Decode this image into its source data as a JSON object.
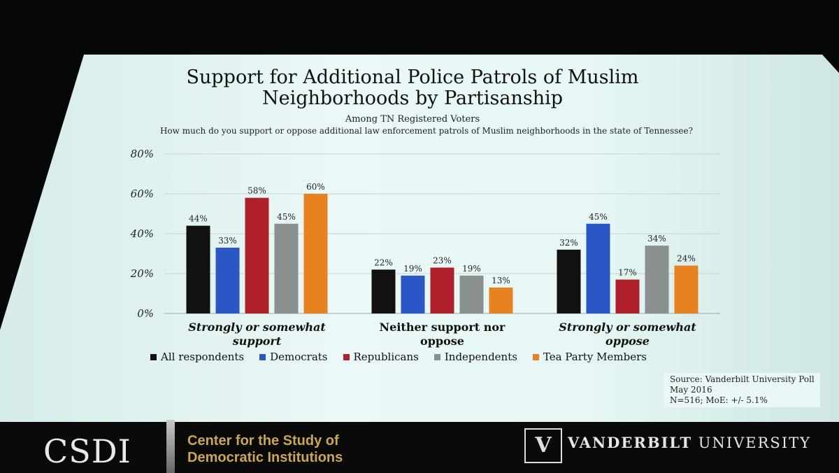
{
  "chart_data": {
    "type": "bar",
    "title": "Support for Additional Police Patrols of Muslim Neighborhoods by Partisanship",
    "subtitle": "Among TN Registered Voters",
    "question": "How much do you support or oppose additional law enforcement patrols of Muslim neighborhoods in the state of Tennessee?",
    "categories": [
      "Strongly or somewhat support",
      "Neither support nor oppose",
      "Strongly or somewhat oppose"
    ],
    "series": [
      {
        "name": "All respondents",
        "color": "#111111",
        "values": [
          44,
          22,
          32
        ]
      },
      {
        "name": "Democrats",
        "color": "#2a56c6",
        "values": [
          33,
          19,
          45
        ]
      },
      {
        "name": "Republicans",
        "color": "#b0202a",
        "values": [
          58,
          23,
          17
        ]
      },
      {
        "name": "Independents",
        "color": "#8a8f8f",
        "values": [
          45,
          19,
          34
        ]
      },
      {
        "name": "Tea Party Members",
        "color": "#e8821e",
        "values": [
          60,
          13,
          24
        ]
      }
    ],
    "ylim": [
      0,
      80
    ],
    "yticks": [
      "0%",
      "20%",
      "40%",
      "60%",
      "80%"
    ],
    "grid": true,
    "legend": "bottom",
    "value_suffix": "%"
  },
  "source": {
    "line1": "Source: Vanderbilt University Poll",
    "line2": "May 2016",
    "line3": "N=516; MoE: +/- 5.1%"
  },
  "footer": {
    "csdi": "CSDI",
    "csdi_line1": "Center for the Study of",
    "csdi_line2": "Democratic Institutions",
    "vu_bold": "VANDERBILT",
    "vu_rest": " UNIVERSITY"
  }
}
